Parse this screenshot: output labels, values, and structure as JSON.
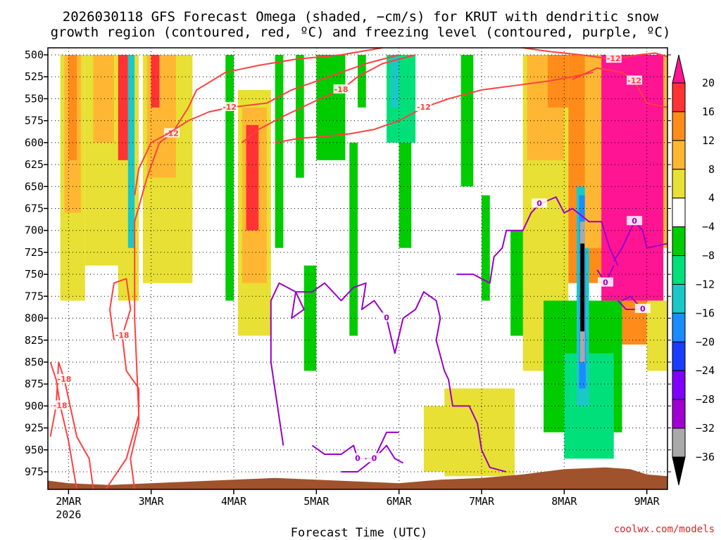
{
  "chart_data": {
    "type": "heatmap",
    "title": [
      "2026030118 GFS Forecast Omega (shaded, −cm/s) for KRUT with dendritic snow",
      "growth region (contoured, red, ºC) and freezing level (contoured, purple, ºC)"
    ],
    "xlabel": "Forecast Time (UTC)",
    "ylabel": "",
    "credit": "coolwx.com/models",
    "x_ticks": [
      {
        "label": "2MAR",
        "sub": "2026",
        "day": 2
      },
      {
        "label": "3MAR",
        "day": 3
      },
      {
        "label": "4MAR",
        "day": 4
      },
      {
        "label": "5MAR",
        "day": 5
      },
      {
        "label": "6MAR",
        "day": 6
      },
      {
        "label": "7MAR",
        "day": 7
      },
      {
        "label": "8MAR",
        "day": 8
      },
      {
        "label": "9MAR",
        "day": 9
      }
    ],
    "xlim": [
      1.75,
      9.25
    ],
    "y_ticks": [
      500,
      525,
      550,
      575,
      600,
      625,
      650,
      675,
      700,
      725,
      750,
      775,
      800,
      825,
      850,
      875,
      900,
      925,
      950,
      975
    ],
    "ylim": [
      492,
      995
    ],
    "colorbar": {
      "labels": [
        "20",
        "16",
        "12",
        "8",
        "4",
        "−4",
        "−8",
        "−12",
        "−16",
        "−20",
        "−24",
        "−28",
        "−32",
        "−36"
      ],
      "colors": [
        "#ff1493",
        "#ff3333",
        "#ff8c1a",
        "#ffb733",
        "#e8e034",
        "#ffffff",
        "#00cc00",
        "#00e07a",
        "#1ac8c8",
        "#1a8cff",
        "#1a3cff",
        "#8000ff",
        "#a000d0",
        "#a9a9a9",
        "#000000"
      ]
    },
    "contour_labels": {
      "red": [
        "-18",
        "-12",
        "-18",
        "-18",
        "-12",
        "-18",
        "-12",
        "-12",
        "-12"
      ],
      "purple": [
        "0",
        "0",
        "0",
        "0",
        "0",
        "0",
        "0"
      ]
    },
    "omega_regions": [
      {
        "t0": 1.9,
        "t1": 2.2,
        "p0": 500,
        "p1": 780,
        "c": 4
      },
      {
        "t0": 1.95,
        "t1": 2.15,
        "p0": 500,
        "p1": 680,
        "c": 3
      },
      {
        "t0": 2.0,
        "t1": 2.1,
        "p0": 500,
        "p1": 620,
        "c": 2
      },
      {
        "t0": 2.2,
        "t1": 2.7,
        "p0": 500,
        "p1": 740,
        "c": 4
      },
      {
        "t0": 2.3,
        "t1": 2.55,
        "p0": 500,
        "p1": 600,
        "c": 3
      },
      {
        "t0": 2.6,
        "t1": 2.85,
        "p0": 500,
        "p1": 780,
        "c": 4
      },
      {
        "t0": 2.6,
        "t1": 2.72,
        "p0": 500,
        "p1": 620,
        "c": 1
      },
      {
        "t0": 2.72,
        "t1": 2.8,
        "p0": 500,
        "p1": 720,
        "c": 8
      },
      {
        "t0": 2.9,
        "t1": 3.5,
        "p0": 500,
        "p1": 760,
        "c": 4
      },
      {
        "t0": 2.95,
        "t1": 3.3,
        "p0": 500,
        "p1": 640,
        "c": 3
      },
      {
        "t0": 3.0,
        "t1": 3.1,
        "p0": 500,
        "p1": 560,
        "c": 1
      },
      {
        "t0": 3.9,
        "t1": 4.0,
        "p0": 500,
        "p1": 780,
        "c": 6
      },
      {
        "t0": 4.05,
        "t1": 4.45,
        "p0": 540,
        "p1": 820,
        "c": 4
      },
      {
        "t0": 4.1,
        "t1": 4.4,
        "p0": 560,
        "p1": 760,
        "c": 3
      },
      {
        "t0": 4.15,
        "t1": 4.3,
        "p0": 580,
        "p1": 700,
        "c": 1
      },
      {
        "t0": 4.5,
        "t1": 4.6,
        "p0": 500,
        "p1": 720,
        "c": 6
      },
      {
        "t0": 4.75,
        "t1": 4.85,
        "p0": 500,
        "p1": 640,
        "c": 6
      },
      {
        "t0": 4.85,
        "t1": 5.0,
        "p0": 740,
        "p1": 860,
        "c": 6
      },
      {
        "t0": 5.0,
        "t1": 5.35,
        "p0": 500,
        "p1": 620,
        "c": 6
      },
      {
        "t0": 5.4,
        "t1": 5.5,
        "p0": 600,
        "p1": 820,
        "c": 6
      },
      {
        "t0": 5.5,
        "t1": 5.6,
        "p0": 500,
        "p1": 560,
        "c": 6
      },
      {
        "t0": 5.85,
        "t1": 6.2,
        "p0": 500,
        "p1": 600,
        "c": 7
      },
      {
        "t0": 5.9,
        "t1": 6.0,
        "p0": 500,
        "p1": 560,
        "c": 8
      },
      {
        "t0": 6.0,
        "t1": 6.15,
        "p0": 600,
        "p1": 720,
        "c": 6
      },
      {
        "t0": 6.3,
        "t1": 6.6,
        "p0": 900,
        "p1": 975,
        "c": 4
      },
      {
        "t0": 6.55,
        "t1": 7.4,
        "p0": 880,
        "p1": 980,
        "c": 4
      },
      {
        "t0": 6.75,
        "t1": 6.9,
        "p0": 500,
        "p1": 650,
        "c": 6
      },
      {
        "t0": 7.0,
        "t1": 7.1,
        "p0": 660,
        "p1": 780,
        "c": 6
      },
      {
        "t0": 7.35,
        "t1": 7.55,
        "p0": 700,
        "p1": 820,
        "c": 6
      },
      {
        "t0": 7.5,
        "t1": 8.05,
        "p0": 500,
        "p1": 860,
        "c": 4
      },
      {
        "t0": 7.55,
        "t1": 8.0,
        "p0": 500,
        "p1": 620,
        "c": 3
      },
      {
        "t0": 7.8,
        "t1": 8.05,
        "p0": 500,
        "p1": 560,
        "c": 2
      },
      {
        "t0": 7.75,
        "t1": 8.7,
        "p0": 780,
        "p1": 930,
        "c": 6
      },
      {
        "t0": 8.0,
        "t1": 8.6,
        "p0": 840,
        "p1": 960,
        "c": 7
      },
      {
        "t0": 8.05,
        "t1": 8.5,
        "p0": 500,
        "p1": 760,
        "c": 2
      },
      {
        "t0": 8.15,
        "t1": 8.3,
        "p0": 650,
        "p1": 900,
        "c": 8
      },
      {
        "t0": 8.18,
        "t1": 8.26,
        "p0": 660,
        "p1": 880,
        "c": 9
      },
      {
        "t0": 8.19,
        "t1": 8.25,
        "p0": 690,
        "p1": 850,
        "c": 13
      },
      {
        "t0": 8.195,
        "t1": 8.245,
        "p0": 715,
        "p1": 815,
        "c": 14
      },
      {
        "t0": 8.25,
        "t1": 9.25,
        "p0": 500,
        "p1": 720,
        "c": 3
      },
      {
        "t0": 8.45,
        "t1": 9.2,
        "p0": 500,
        "p1": 780,
        "c": 0
      },
      {
        "t0": 8.7,
        "t1": 9.0,
        "p0": 780,
        "p1": 830,
        "c": 2
      },
      {
        "t0": 9.0,
        "t1": 9.25,
        "p0": 780,
        "p1": 860,
        "c": 4
      }
    ],
    "red_contours": [
      {
        "label_idx": 0,
        "points": [
          [
            1.78,
            935
          ],
          [
            1.85,
            900
          ],
          [
            1.88,
            850
          ],
          [
            1.95,
            870
          ],
          [
            2.1,
            935
          ],
          [
            2.25,
            960
          ],
          [
            2.3,
            995
          ]
        ]
      },
      {
        "label_idx": 1,
        "points": [
          [
            2.45,
            995
          ],
          [
            2.7,
            960
          ],
          [
            2.85,
            910
          ],
          [
            2.8,
            800
          ],
          [
            2.8,
            690
          ],
          [
            2.95,
            640
          ],
          [
            3.1,
            600
          ],
          [
            3.25,
            590
          ],
          [
            3.45,
            560
          ],
          [
            3.55,
            540
          ],
          [
            3.9,
            520
          ],
          [
            4.3,
            512
          ],
          [
            4.75,
            505
          ],
          [
            5.3,
            500
          ],
          [
            5.8,
            492
          ]
        ]
      },
      {
        "label_idx": 2,
        "points": [
          [
            1.78,
            850
          ],
          [
            1.85,
            870
          ],
          [
            1.9,
            900
          ],
          [
            2.0,
            940
          ],
          [
            2.1,
            995
          ]
        ]
      },
      {
        "label_idx": 3,
        "points": [
          [
            2.55,
            825
          ],
          [
            2.5,
            790
          ],
          [
            2.55,
            760
          ],
          [
            2.7,
            755
          ],
          [
            2.75,
            790
          ],
          [
            2.65,
            820
          ],
          [
            2.7,
            860
          ],
          [
            2.85,
            880
          ],
          [
            2.85,
            920
          ],
          [
            2.75,
            960
          ],
          [
            2.8,
            995
          ]
        ]
      },
      {
        "label_idx": 4,
        "points": [
          [
            2.8,
            660
          ],
          [
            2.85,
            630
          ],
          [
            3.0,
            600
          ],
          [
            3.2,
            590
          ],
          [
            3.45,
            575
          ],
          [
            3.7,
            565
          ],
          [
            3.95,
            560
          ],
          [
            4.4,
            555
          ],
          [
            4.7,
            540
          ],
          [
            5.0,
            530
          ],
          [
            5.3,
            520
          ],
          [
            5.6,
            510
          ],
          [
            6.0,
            500
          ]
        ]
      },
      {
        "label_idx": 5,
        "points": [
          [
            4.1,
            600
          ],
          [
            4.3,
            585
          ],
          [
            4.6,
            570
          ],
          [
            5.0,
            552
          ],
          [
            5.3,
            540
          ],
          [
            5.5,
            525
          ],
          [
            5.8,
            510
          ],
          [
            6.2,
            500
          ]
        ]
      },
      {
        "label_idx": 6,
        "points": [
          [
            4.5,
            600
          ],
          [
            4.8,
            595
          ],
          [
            5.1,
            593
          ],
          [
            5.4,
            590
          ],
          [
            5.7,
            585
          ],
          [
            6.0,
            575
          ],
          [
            6.3,
            560
          ],
          [
            6.6,
            550
          ],
          [
            7.0,
            540
          ],
          [
            7.4,
            535
          ],
          [
            7.8,
            530
          ],
          [
            8.1,
            525
          ],
          [
            8.35,
            520
          ]
        ]
      },
      {
        "label_idx": 7,
        "points": [
          [
            8.1,
            528
          ],
          [
            8.4,
            515
          ],
          [
            8.7,
            520
          ],
          [
            8.85,
            530
          ],
          [
            9.0,
            555
          ],
          [
            9.25,
            560
          ]
        ]
      },
      {
        "label_idx": 8,
        "points": [
          [
            7.5,
            492
          ],
          [
            7.8,
            496
          ],
          [
            8.2,
            500
          ],
          [
            8.6,
            505
          ],
          [
            8.9,
            500
          ],
          [
            9.1,
            498
          ],
          [
            9.25,
            502
          ]
        ]
      }
    ],
    "purple_contours": [
      {
        "label_idx": 0,
        "points": [
          [
            4.6,
            945
          ],
          [
            4.45,
            850
          ],
          [
            4.45,
            780
          ],
          [
            4.55,
            760
          ],
          [
            4.75,
            770
          ],
          [
            4.85,
            790
          ],
          [
            4.7,
            800
          ],
          [
            4.75,
            770
          ],
          [
            4.95,
            770
          ],
          [
            5.1,
            760
          ],
          [
            5.3,
            780
          ],
          [
            5.45,
            765
          ],
          [
            5.6,
            760
          ],
          [
            5.55,
            790
          ],
          [
            5.7,
            780
          ],
          [
            5.85,
            800
          ],
          [
            5.95,
            840
          ],
          [
            6.05,
            800
          ],
          [
            6.2,
            790
          ],
          [
            6.3,
            770
          ],
          [
            6.45,
            780
          ],
          [
            6.5,
            800
          ],
          [
            6.45,
            825
          ],
          [
            6.55,
            860
          ],
          [
            6.6,
            870
          ],
          [
            6.65,
            900
          ],
          [
            6.85,
            900
          ],
          [
            6.95,
            920
          ],
          [
            7.0,
            950
          ],
          [
            7.1,
            970
          ],
          [
            7.3,
            975
          ]
        ]
      },
      {
        "label_idx": 1,
        "points": [
          [
            4.95,
            945
          ],
          [
            5.1,
            955
          ],
          [
            5.3,
            955
          ],
          [
            5.45,
            945
          ],
          [
            5.5,
            960
          ],
          [
            5.7,
            960
          ],
          [
            5.85,
            945
          ],
          [
            5.95,
            960
          ],
          [
            6.05,
            965
          ]
        ]
      },
      {
        "label_idx": 2,
        "points": [
          [
            5.3,
            975
          ],
          [
            5.5,
            975
          ],
          [
            5.7,
            960
          ],
          [
            5.85,
            930
          ],
          [
            6.0,
            930
          ]
        ]
      },
      {
        "label_idx": 3,
        "points": [
          [
            6.7,
            750
          ],
          [
            6.9,
            750
          ],
          [
            7.1,
            760
          ],
          [
            7.15,
            730
          ],
          [
            7.25,
            720
          ],
          [
            7.3,
            700
          ],
          [
            7.5,
            700
          ],
          [
            7.6,
            680
          ],
          [
            7.7,
            670
          ],
          [
            7.9,
            662
          ],
          [
            8.0,
            680
          ],
          [
            8.1,
            675
          ],
          [
            8.3,
            690
          ],
          [
            8.45,
            690
          ],
          [
            8.55,
            720
          ],
          [
            8.65,
            740
          ]
        ]
      },
      {
        "label_idx": 4,
        "points": [
          [
            8.6,
            735
          ],
          [
            8.7,
            720
          ],
          [
            8.8,
            700
          ],
          [
            8.85,
            690
          ],
          [
            8.95,
            700
          ],
          [
            9.0,
            720
          ],
          [
            9.25,
            715
          ]
        ]
      },
      {
        "label_idx": 5,
        "points": [
          [
            8.65,
            780
          ],
          [
            8.75,
            790
          ],
          [
            8.95,
            790
          ],
          [
            8.8,
            775
          ],
          [
            8.7,
            780
          ]
        ]
      },
      {
        "label_idx": 6,
        "points": [
          [
            8.4,
            745
          ],
          [
            8.5,
            760
          ],
          [
            8.6,
            740
          ]
        ]
      }
    ],
    "terrain": [
      [
        1.75,
        985
      ],
      [
        2.0,
        988
      ],
      [
        2.5,
        990
      ],
      [
        3.0,
        988
      ],
      [
        3.5,
        986
      ],
      [
        4.0,
        984
      ],
      [
        4.5,
        982
      ],
      [
        5.0,
        984
      ],
      [
        5.5,
        986
      ],
      [
        6.0,
        988
      ],
      [
        6.5,
        984
      ],
      [
        7.0,
        982
      ],
      [
        7.5,
        978
      ],
      [
        8.0,
        972
      ],
      [
        8.5,
        970
      ],
      [
        8.8,
        972
      ],
      [
        9.0,
        978
      ],
      [
        9.25,
        980
      ]
    ]
  }
}
